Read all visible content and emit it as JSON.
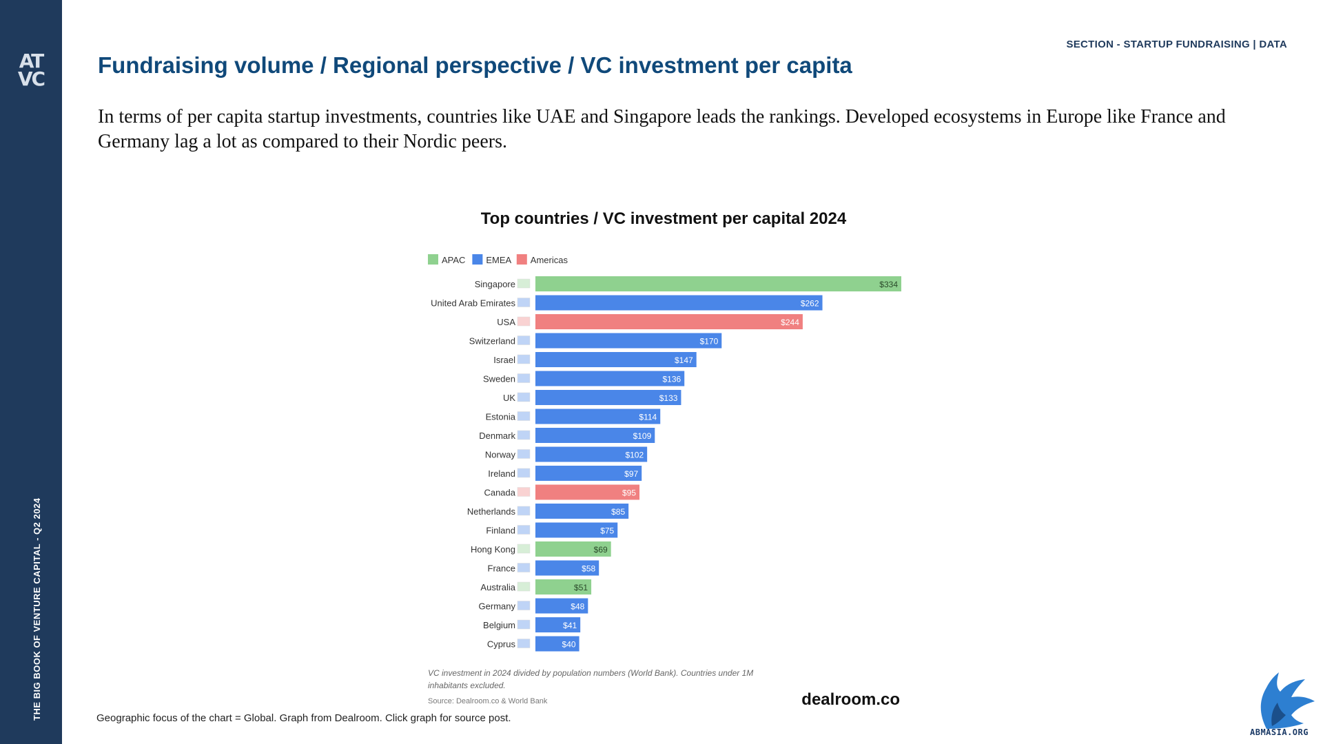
{
  "sidebar": {
    "logo_text_top": "AT",
    "logo_text_bottom": "VC",
    "vertical_text": "THE BIG BOOK OF VENTURE CAPITAL - Q2 2024"
  },
  "header": {
    "section_label": "SECTION - STARTUP FUNDRAISING | DATA",
    "title": "Fundraising volume / Regional perspective / VC investment per capita"
  },
  "intro_text": "In terms of per capita startup investments, countries like UAE and Singapore leads the rankings. Developed ecosystems in Europe like France and Germany lag a lot as compared to their Nordic peers.",
  "chart_data": {
    "type": "bar",
    "orientation": "horizontal",
    "title": "Top countries / VC investment per capital 2024",
    "legend": [
      {
        "name": "APAC",
        "color": "#8fd18f"
      },
      {
        "name": "EMEA",
        "color": "#4a86e8"
      },
      {
        "name": "Americas",
        "color": "#f08080"
      }
    ],
    "legend_placement": "top-left",
    "grid": false,
    "xlim": [
      0,
      334
    ],
    "categories": [
      "Singapore",
      "United Arab Emirates",
      "USA",
      "Switzerland",
      "Israel",
      "Sweden",
      "UK",
      "Estonia",
      "Denmark",
      "Norway",
      "Ireland",
      "Canada",
      "Netherlands",
      "Finland",
      "Hong Kong",
      "France",
      "Australia",
      "Germany",
      "Belgium",
      "Cyprus"
    ],
    "values": [
      334,
      262,
      244,
      170,
      147,
      136,
      133,
      114,
      109,
      102,
      97,
      95,
      85,
      75,
      69,
      58,
      51,
      48,
      41,
      40
    ],
    "labels": [
      "$334",
      "$262",
      "$244",
      "$170",
      "$147",
      "$136",
      "$133",
      "$114",
      "$109",
      "$102",
      "$97",
      "$95",
      "$85",
      "$75",
      "$69",
      "$58",
      "$51",
      "$48",
      "$41",
      "$40"
    ],
    "regions": [
      "APAC",
      "EMEA",
      "Americas",
      "EMEA",
      "EMEA",
      "EMEA",
      "EMEA",
      "EMEA",
      "EMEA",
      "EMEA",
      "EMEA",
      "Americas",
      "EMEA",
      "EMEA",
      "APAC",
      "EMEA",
      "APAC",
      "EMEA",
      "EMEA",
      "EMEA"
    ],
    "note": "VC investment in 2024 divided by population numbers (World Bank). Countries under 1M inhabitants excluded.",
    "source": "Source: Dealroom.co & World Bank",
    "brand": "dealroom.co"
  },
  "footnote": "Geographic focus of the chart = Global. Graph from Dealroom. Click graph for source post.",
  "brand_footer": "ABMASIA.ORG",
  "colors": {
    "sidebar": "#1f3a5c",
    "title": "#10497a",
    "apac": "#8fd18f",
    "emea": "#4a86e8",
    "americas": "#f08080"
  }
}
